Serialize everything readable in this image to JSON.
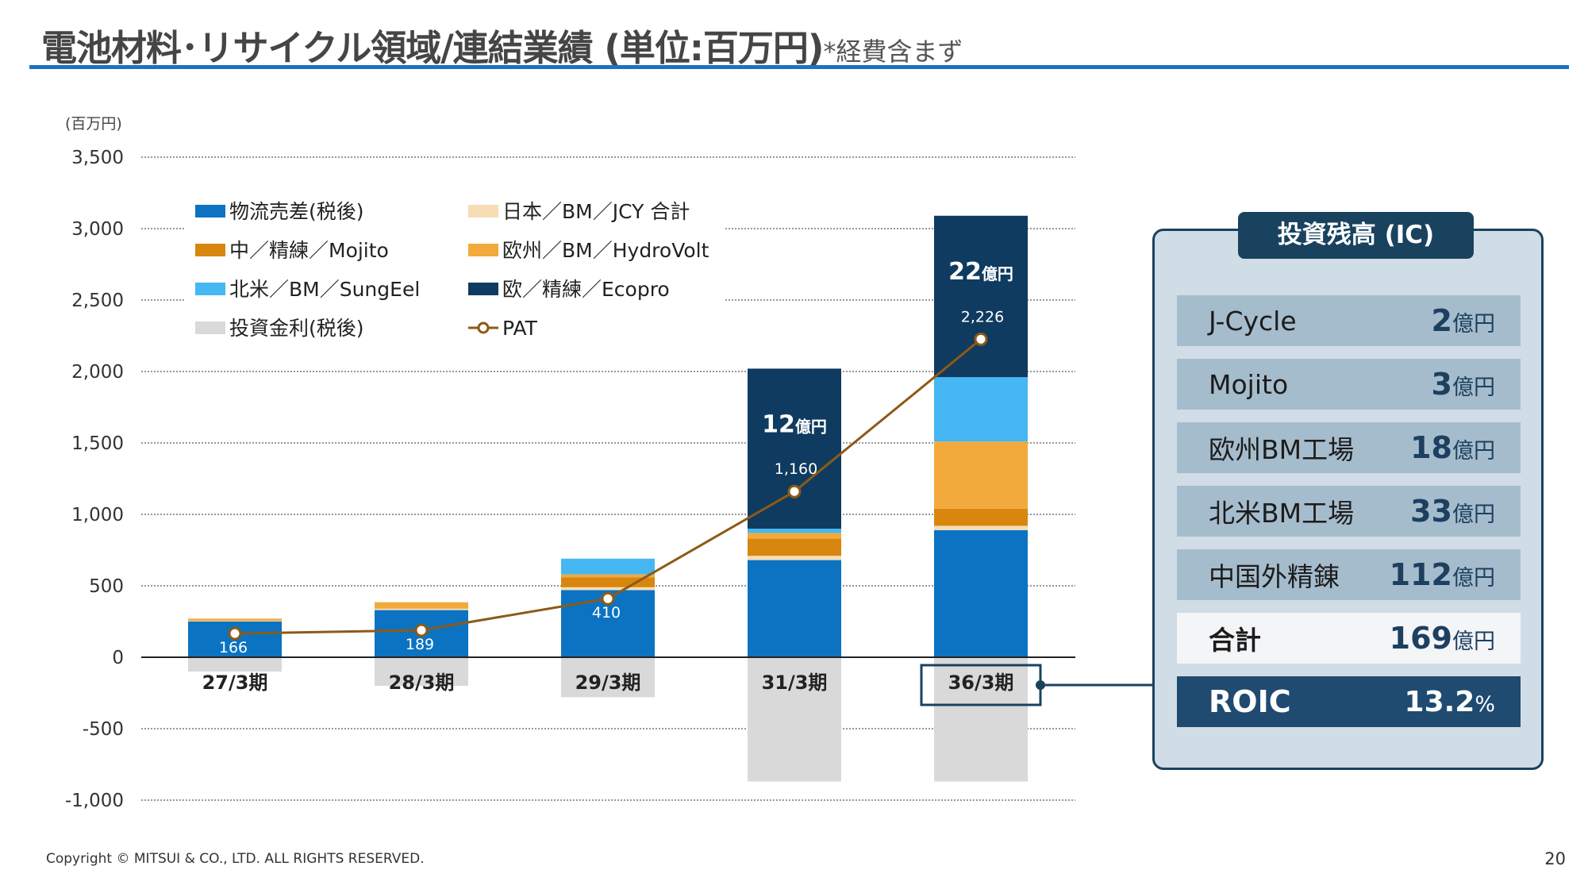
{
  "title": {
    "main": "電池材料･リサイクル領域/連結業績 (単位:百万円)",
    "note": "*経費含まず"
  },
  "footer": {
    "copyright": "Copyright © MITSUI & CO., LTD. ALL RIGHTS RESERVED.",
    "page_number": "20"
  },
  "chart_data": {
    "type": "bar",
    "stacked": true,
    "unit_label": "(百万円)",
    "categories": [
      "27/3期",
      "28/3期",
      "29/3期",
      "31/3期",
      "36/3期"
    ],
    "highlighted_category": "36/3期",
    "ylim": [
      -1000,
      3500
    ],
    "yticks": [
      3500,
      3000,
      2500,
      2000,
      1500,
      1000,
      500,
      0,
      -500,
      -1000
    ],
    "ytick_labels": [
      "3,500",
      "3,000",
      "2,500",
      "2,000",
      "1,500",
      "1,000",
      "500",
      "0",
      "-500",
      "-1,000"
    ],
    "grid": true,
    "legend_placement": "top-left",
    "series": [
      {
        "name": "物流売差(税後)",
        "color": "#0b73c2",
        "values": [
          250,
          330,
          470,
          680,
          890
        ]
      },
      {
        "name": "日本／BM／JCY 合計",
        "color": "#f6ddb4",
        "values": [
          5,
          10,
          20,
          30,
          30
        ]
      },
      {
        "name": "中／精練／Mojito",
        "color": "#d8860e",
        "values": [
          0,
          0,
          70,
          120,
          120
        ]
      },
      {
        "name": "欧州／BM／HydroVolt",
        "color": "#f2aa3c",
        "values": [
          15,
          45,
          20,
          40,
          470
        ]
      },
      {
        "name": "北米／BM／SungEel",
        "color": "#45b7f3",
        "values": [
          0,
          0,
          110,
          30,
          450
        ]
      },
      {
        "name": "欧／精練／Ecopro",
        "color": "#0f3b60",
        "values": [
          0,
          0,
          0,
          1120,
          1130
        ]
      },
      {
        "name": "投資金利(税後)",
        "color": "#d9d9d9",
        "values": [
          -100,
          -200,
          -280,
          -870,
          -870
        ]
      }
    ],
    "line_series": {
      "name": "PAT",
      "color": "#8d5a16",
      "values": [
        166,
        189,
        410,
        1160,
        2226
      ],
      "labels": [
        "166",
        "189",
        "410",
        "1,160",
        "2,226"
      ]
    },
    "bar_annotations": [
      {
        "category": "31/3期",
        "num": "12",
        "unit": "億円"
      },
      {
        "category": "36/3期",
        "num": "22",
        "unit": "億円"
      }
    ]
  },
  "investment_panel": {
    "header": "投資残高 (IC)",
    "rows": [
      {
        "label": "J-Cycle",
        "num": "2",
        "unit": "億円"
      },
      {
        "label": "Mojito",
        "num": "3",
        "unit": "億円"
      },
      {
        "label": "欧州BM工場",
        "num": "18",
        "unit": "億円"
      },
      {
        "label": "北米BM工場",
        "num": "33",
        "unit": "億円"
      },
      {
        "label": "中国外精錬",
        "num": "112",
        "unit": "億円"
      }
    ],
    "total": {
      "label": "合計",
      "num": "169",
      "unit": "億円"
    },
    "roic": {
      "label": "ROIC",
      "num": "13.2",
      "unit": "%"
    }
  }
}
